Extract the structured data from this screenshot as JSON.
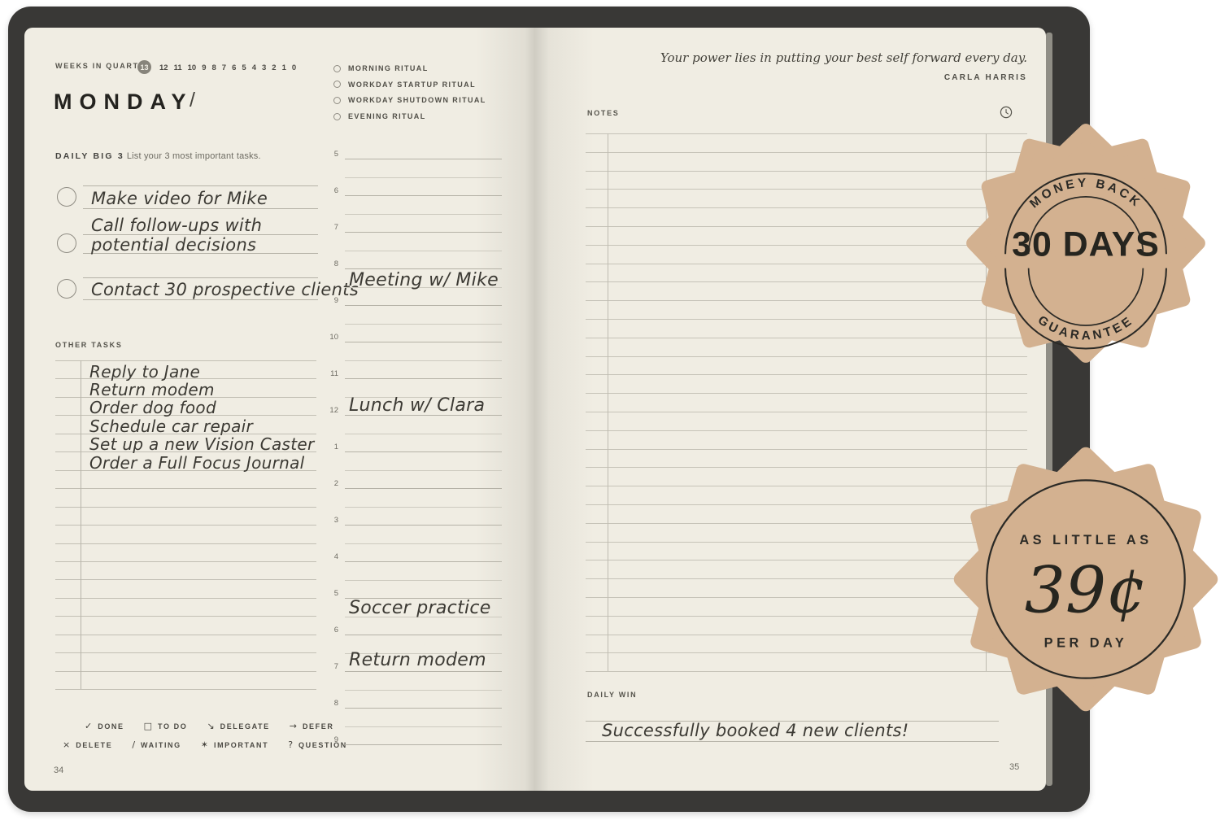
{
  "colors": {
    "cover": "#393836",
    "page": "#f0ede3",
    "badge_tan": "#d3b190",
    "ink": "#2b2a26"
  },
  "left_page": {
    "weeks": {
      "label": "WEEKS IN QUARTER",
      "current": "13",
      "numbers": [
        "12",
        "11",
        "10",
        "9",
        "8",
        "7",
        "6",
        "5",
        "4",
        "3",
        "2",
        "1",
        "0"
      ]
    },
    "day": {
      "title": "MONDAY",
      "slash": "/"
    },
    "big3": {
      "label": "DAILY BIG 3",
      "hint": "List your 3 most important tasks.",
      "tasks": [
        {
          "lines": [
            "Make video for Mike"
          ]
        },
        {
          "lines": [
            "Call follow-ups with",
            "potential decisions"
          ]
        },
        {
          "lines": [
            "Contact 30 prospective clients"
          ]
        }
      ]
    },
    "other_tasks": {
      "label": "OTHER TASKS",
      "line_count": 19,
      "items": [
        "Reply to Jane",
        "Return modem",
        "Order dog food",
        "Schedule car repair",
        "Set up a new Vision Caster",
        "Order a Full Focus Journal"
      ]
    },
    "legend": {
      "row1": [
        {
          "symbol": "✓",
          "label": "DONE"
        },
        {
          "symbol": "□",
          "label": "TO DO"
        },
        {
          "symbol": "↘",
          "label": "DELEGATE"
        },
        {
          "symbol": "→",
          "label": "DEFER"
        }
      ],
      "row2": [
        {
          "symbol": "×",
          "label": "DELETE"
        },
        {
          "symbol": "/",
          "label": "WAITING"
        },
        {
          "symbol": "✶",
          "label": "IMPORTANT"
        },
        {
          "symbol": "?",
          "label": "QUESTION"
        }
      ]
    },
    "page_number": "34"
  },
  "rituals": {
    "items": [
      "MORNING RITUAL",
      "WORKDAY STARTUP RITUAL",
      "WORKDAY SHUTDOWN RITUAL",
      "EVENING RITUAL"
    ]
  },
  "schedule": {
    "hours": [
      "5",
      "6",
      "7",
      "8",
      "9",
      "10",
      "11",
      "12",
      "1",
      "2",
      "3",
      "4",
      "5",
      "6",
      "7",
      "8",
      "9"
    ],
    "half_count": 16,
    "entries": [
      {
        "text": "Meeting w/ Mike",
        "row": 3.5
      },
      {
        "text": "Lunch w/ Clara",
        "row": 6.93
      },
      {
        "text": "Soccer practice",
        "row": 12.47
      },
      {
        "text": "Return modem",
        "row": 13.89
      }
    ]
  },
  "right_page": {
    "quote": {
      "text": "Your power lies in putting your best self forward every day.",
      "author": "CARLA HARRIS"
    },
    "notes": {
      "label": "NOTES",
      "line_count": 30
    },
    "daily_win": {
      "label": "DAILY WIN",
      "text": "Successfully booked 4 new clients!"
    },
    "page_number": "35"
  },
  "badges": {
    "money_back": {
      "top": "MONEY BACK",
      "center": "30 DAYS",
      "bottom": "GUARANTEE"
    },
    "price": {
      "top": "AS LITTLE AS",
      "center": "39¢",
      "bottom": "PER DAY"
    }
  }
}
